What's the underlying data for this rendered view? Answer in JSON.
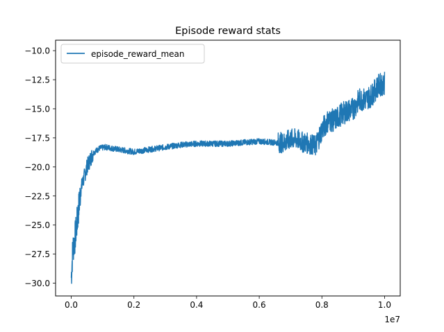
{
  "chart_data": {
    "type": "line",
    "title": "Episode reward stats",
    "xlabel": "",
    "ylabel": "",
    "x_offset_label": "1e7",
    "xlim": [
      -0.05,
      1.05
    ],
    "ylim": [
      -31.1,
      -9.1
    ],
    "x_ticks": [
      0.0,
      0.2,
      0.4,
      0.6,
      0.8,
      1.0
    ],
    "x_tick_labels": [
      "0.0",
      "0.2",
      "0.4",
      "0.6",
      "0.8",
      "1.0"
    ],
    "y_ticks": [
      -10.0,
      -12.5,
      -15.0,
      -17.5,
      -20.0,
      -22.5,
      -25.0,
      -27.5,
      -30.0
    ],
    "y_tick_labels": [
      "−10.0",
      "−12.5",
      "−15.0",
      "−17.5",
      "−20.0",
      "−22.5",
      "−25.0",
      "−27.5",
      "−30.0"
    ],
    "grid": false,
    "legend_position": "top-left",
    "series": [
      {
        "name": "episode_reward_mean",
        "color": "#1f77b4",
        "x": [
          0.0,
          0.005,
          0.01,
          0.015,
          0.02,
          0.03,
          0.04,
          0.05,
          0.07,
          0.09,
          0.11,
          0.13,
          0.15,
          0.2,
          0.25,
          0.3,
          0.35,
          0.4,
          0.45,
          0.5,
          0.55,
          0.6,
          0.65,
          0.68,
          0.7,
          0.72,
          0.74,
          0.76,
          0.78,
          0.8,
          0.82,
          0.84,
          0.86,
          0.88,
          0.9,
          0.92,
          0.94,
          0.96,
          0.98,
          1.0
        ],
        "y": [
          -29.5,
          -27.0,
          -26.5,
          -25.5,
          -24.5,
          -22.0,
          -21.0,
          -20.0,
          -18.8,
          -18.4,
          -18.3,
          -18.4,
          -18.5,
          -18.7,
          -18.5,
          -18.3,
          -18.1,
          -18.0,
          -18.0,
          -18.0,
          -17.9,
          -17.8,
          -17.9,
          -17.9,
          -17.6,
          -17.6,
          -17.9,
          -18.0,
          -18.2,
          -16.8,
          -16.0,
          -16.0,
          -15.5,
          -15.2,
          -15.0,
          -14.2,
          -14.2,
          -13.8,
          -13.0,
          -12.8
        ]
      }
    ]
  }
}
